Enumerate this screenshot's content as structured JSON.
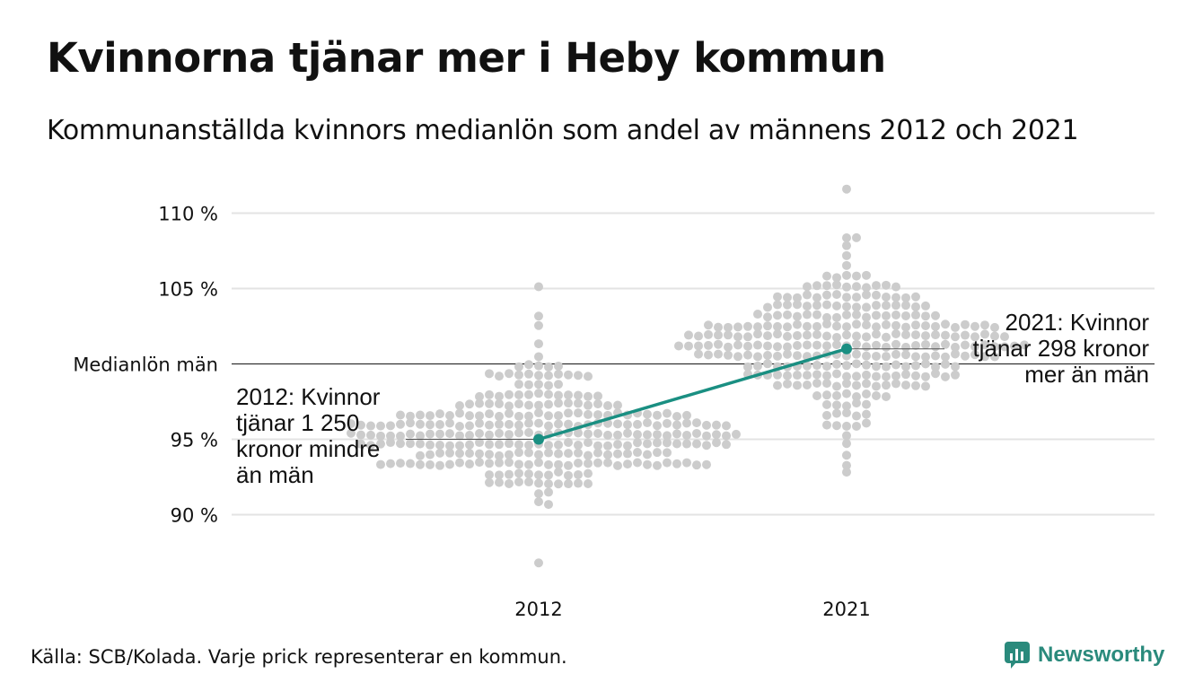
{
  "title": "Kvinnorna tjänar mer i Heby kommun",
  "subtitle": "Kommunanställda kvinnors medianlön som andel av männens 2012 och 2021",
  "source": "Källa: SCB/Kolada. Varje prick representerar en kommun.",
  "brand": {
    "name": "Newsworthy"
  },
  "colors": {
    "dots": "#cccccc",
    "highlight": "#1a8f82",
    "grid": "#e3e3e3",
    "reference": "#333333",
    "brand": "#2a8a7c"
  },
  "chart_data": {
    "type": "scatter",
    "categories": [
      "2012",
      "2021"
    ],
    "y_tick_labels": [
      "110 %",
      "105 %",
      "Medianlön män",
      "95 %",
      "90 %"
    ],
    "y_ticks": [
      110,
      105,
      100,
      95,
      90
    ],
    "ylim": [
      86,
      112
    ],
    "reference_line": {
      "value": 100,
      "label": "Medianlön män"
    },
    "grid": true,
    "highlight": {
      "points": [
        {
          "x": "2012",
          "y": 95.0
        },
        {
          "x": "2021",
          "y": 101.0
        }
      ]
    },
    "annotations": [
      {
        "x": "2012",
        "lines": [
          "2012: Kvinnor",
          "tjänar 1 250",
          "kronor mindre",
          "än män"
        ]
      },
      {
        "x": "2021",
        "lines": [
          "2021: Kvinnor",
          "tjänar 298 kronor",
          "mer än män"
        ]
      }
    ],
    "distributions": [
      {
        "x": "2012",
        "n": 290,
        "median": 95.3,
        "sd": 2.1,
        "min": 86.5,
        "max": 105.2
      },
      {
        "x": "2021",
        "n": 290,
        "median": 101.3,
        "sd": 2.3,
        "min": 92.6,
        "max": 111.4
      }
    ]
  }
}
